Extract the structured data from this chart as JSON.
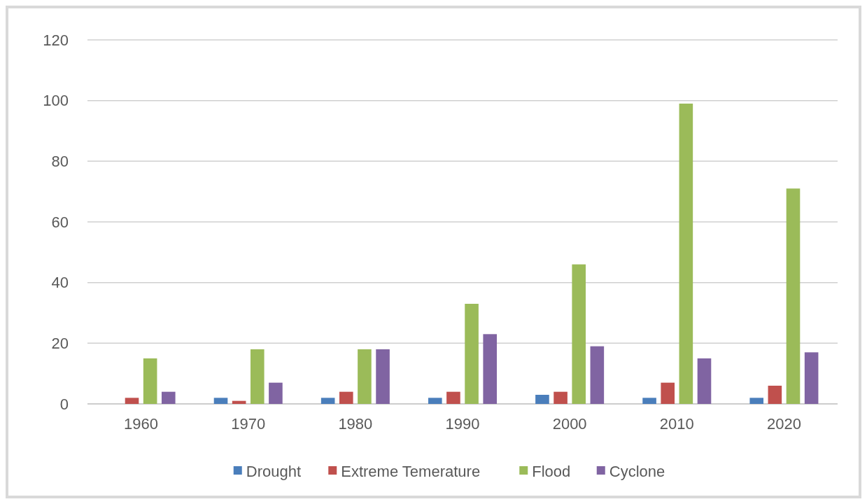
{
  "chart_data": {
    "type": "bar",
    "categories": [
      "1960",
      "1970",
      "1980",
      "1990",
      "2000",
      "2010",
      "2020"
    ],
    "series": [
      {
        "name": "Drought",
        "color": "#4a7ebb",
        "values": [
          0,
          2,
          2,
          2,
          3,
          2,
          2
        ]
      },
      {
        "name": "Extreme Temerature",
        "color": "#c0504d",
        "values": [
          2,
          1,
          4,
          4,
          4,
          7,
          6
        ]
      },
      {
        "name": "Flood",
        "color": "#9bbb59",
        "values": [
          15,
          18,
          18,
          33,
          46,
          99,
          71
        ]
      },
      {
        "name": "Cyclone",
        "color": "#8064a2",
        "values": [
          4,
          7,
          18,
          23,
          19,
          15,
          17
        ]
      }
    ],
    "ylim": [
      0,
      120
    ],
    "yticks": [
      0,
      20,
      40,
      60,
      80,
      100,
      120
    ],
    "grid": "y",
    "legend": "bottom"
  }
}
